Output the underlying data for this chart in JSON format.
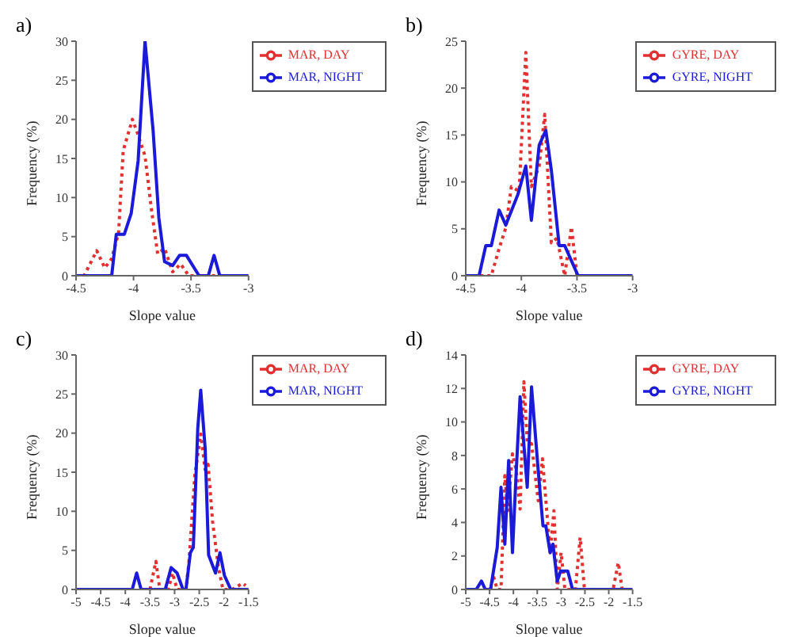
{
  "chart_data": [
    {
      "type": "line",
      "title": "a)",
      "xlabel": "Slope value",
      "ylabel": "Frequency (%)",
      "xlim": [
        -4.5,
        -3
      ],
      "xticks": [
        -4.5,
        -4,
        -3.5,
        -3
      ],
      "ylim": [
        0,
        30
      ],
      "yticks": [
        0,
        5,
        10,
        15,
        20,
        25,
        30
      ],
      "legend": "top right",
      "marker": "none",
      "series": [
        {
          "name": "MAR, DAY",
          "color": "#e03030",
          "line_style": "dotted",
          "x": [
            -4.5,
            -4.43,
            -4.32,
            -4.25,
            -4.19,
            -4.13,
            -4.09,
            -4.01,
            -3.96,
            -3.9,
            -3.84,
            -3.79,
            -3.73,
            -3.66,
            -3.59,
            -3.52,
            -3.25
          ],
          "values": [
            0,
            0,
            3.2,
            1,
            2.2,
            5.5,
            16,
            20,
            18,
            15.3,
            8,
            2.8,
            3.5,
            0.5,
            1.5,
            0,
            0
          ]
        },
        {
          "name": "MAR, NIGHT",
          "color": "#1a1ad8",
          "line_style": "solid",
          "x": [
            -4.5,
            -4.19,
            -4.15,
            -4.08,
            -4.02,
            -3.96,
            -3.9,
            -3.83,
            -3.78,
            -3.73,
            -3.66,
            -3.6,
            -3.54,
            -3.43,
            -3.35,
            -3.3,
            -3.25,
            -3
          ],
          "values": [
            0,
            0,
            5.3,
            5.3,
            8,
            14.7,
            30,
            18.6,
            7.4,
            1.8,
            1.3,
            2.6,
            2.6,
            0,
            0,
            2.6,
            0,
            0
          ]
        }
      ]
    },
    {
      "type": "line",
      "title": "b)",
      "xlabel": "Slope value",
      "ylabel": "Frequency (%)",
      "xlim": [
        -4.5,
        -3
      ],
      "xticks": [
        -4.5,
        -4,
        -3.5,
        -3
      ],
      "ylim": [
        0,
        25
      ],
      "yticks": [
        0,
        5,
        10,
        15,
        20,
        25
      ],
      "legend": "top right",
      "marker": "none",
      "series": [
        {
          "name": "GYRE, DAY",
          "color": "#e03030",
          "line_style": "dotted",
          "x": [
            -4.37,
            -4.27,
            -4.2,
            -4.14,
            -4.09,
            -4.02,
            -3.96,
            -3.91,
            -3.84,
            -3.79,
            -3.73,
            -3.68,
            -3.61,
            -3.55,
            -3.5
          ],
          "values": [
            0,
            0,
            2.9,
            5.1,
            9.5,
            9,
            23.8,
            9.5,
            11.7,
            17.2,
            3.5,
            4,
            0,
            5.2,
            0
          ]
        },
        {
          "name": "GYRE, NIGHT",
          "color": "#1a1ad8",
          "line_style": "solid",
          "x": [
            -4.5,
            -4.38,
            -4.32,
            -4.27,
            -4.2,
            -4.14,
            -4.03,
            -3.96,
            -3.91,
            -3.84,
            -3.78,
            -3.73,
            -3.66,
            -3.61,
            -3.49,
            -3
          ],
          "values": [
            0,
            0,
            3.2,
            3.2,
            7,
            5.4,
            8.7,
            11.7,
            5.9,
            13.9,
            15.5,
            11.2,
            3.2,
            3.2,
            0,
            0
          ]
        }
      ]
    },
    {
      "type": "line",
      "title": "c)",
      "xlabel": "Slope value",
      "ylabel": "Frequency (%)",
      "xlim": [
        -5,
        -1.5
      ],
      "xticks": [
        -5,
        -4.5,
        -4,
        -3.5,
        -3,
        -2.5,
        -2,
        -1.5
      ],
      "ylim": [
        0,
        30
      ],
      "yticks": [
        0,
        5,
        10,
        15,
        20,
        25,
        30
      ],
      "legend": "top right",
      "marker": "none",
      "series": [
        {
          "name": "MAR, DAY",
          "color": "#e03030",
          "line_style": "dotted",
          "x": [
            -3.5,
            -3.38,
            -3.3,
            -3.13,
            -3.04,
            -2.95,
            -2.77,
            -2.71,
            -2.59,
            -2.47,
            -2.38,
            -2.32,
            -2.23,
            -2.11,
            -2.02,
            -1.83,
            -1.62,
            -1.56
          ],
          "values": [
            0,
            3.6,
            0,
            0,
            2.1,
            0,
            0,
            3.4,
            14.6,
            19.9,
            15.3,
            16,
            8.7,
            2.8,
            0,
            0,
            0.8,
            0.5
          ]
        },
        {
          "name": "MAR, NIGHT",
          "color": "#1a1ad8",
          "line_style": "solid",
          "x": [
            -5,
            -3.86,
            -3.77,
            -3.68,
            -3.19,
            -3.07,
            -2.95,
            -2.83,
            -2.77,
            -2.68,
            -2.62,
            -2.53,
            -2.47,
            -2.38,
            -2.31,
            -2.17,
            -2.08,
            -1.99,
            -1.86,
            -1.5
          ],
          "values": [
            0,
            0,
            2.1,
            0,
            0,
            2.8,
            2.1,
            0,
            0,
            4.7,
            5.4,
            20.6,
            25.5,
            18,
            4.4,
            2.1,
            4.7,
            1.8,
            0,
            0
          ]
        }
      ]
    },
    {
      "type": "line",
      "title": "d)",
      "xlabel": "Slope value",
      "ylabel": "Frequency (%)",
      "xlim": [
        -5,
        -1.5
      ],
      "xticks": [
        -5,
        -4.5,
        -4,
        -3.5,
        -3,
        -2.5,
        -2,
        -1.5
      ],
      "ylim": [
        0,
        14
      ],
      "yticks": [
        0,
        2,
        4,
        6,
        8,
        10,
        12,
        14
      ],
      "legend": "top right",
      "marker": "none",
      "series": [
        {
          "name": "GYRE, DAY",
          "color": "#e03030",
          "line_style": "dotted",
          "x": [
            -4.48,
            -4.42,
            -4.34,
            -4.26,
            -4.18,
            -4.12,
            -4.02,
            -3.94,
            -3.86,
            -3.78,
            -3.71,
            -3.62,
            -3.48,
            -3.39,
            -3.23,
            -3.15,
            -3.08,
            -3,
            -2.92,
            -2.7,
            -2.6,
            -2.51,
            -1.91,
            -1.8,
            -1.72
          ],
          "values": [
            0,
            0.8,
            0,
            0,
            6.8,
            4.7,
            8.1,
            7.1,
            4.8,
            12.4,
            8.8,
            8.7,
            5.3,
            7.8,
            2.2,
            4.7,
            0,
            2.2,
            0,
            0,
            3.1,
            0,
            0,
            1.6,
            0
          ]
        },
        {
          "name": "GYRE, NIGHT",
          "color": "#1a1ad8",
          "line_style": "solid",
          "x": [
            -5,
            -4.78,
            -4.67,
            -4.59,
            -4.48,
            -4.34,
            -4.26,
            -4.18,
            -4.1,
            -4.02,
            -3.94,
            -3.86,
            -3.71,
            -3.62,
            -3.48,
            -3.38,
            -3.32,
            -3.23,
            -3.17,
            -3.08,
            -3.01,
            -2.86,
            -2.76,
            -1.5
          ],
          "values": [
            0,
            0,
            0.5,
            0,
            0,
            2.5,
            6.1,
            2.7,
            7.7,
            2.2,
            7.1,
            11.5,
            6.1,
            12.1,
            7.1,
            3.8,
            3.8,
            2.2,
            2.7,
            0.5,
            1.1,
            1.1,
            0,
            0
          ]
        }
      ]
    }
  ]
}
